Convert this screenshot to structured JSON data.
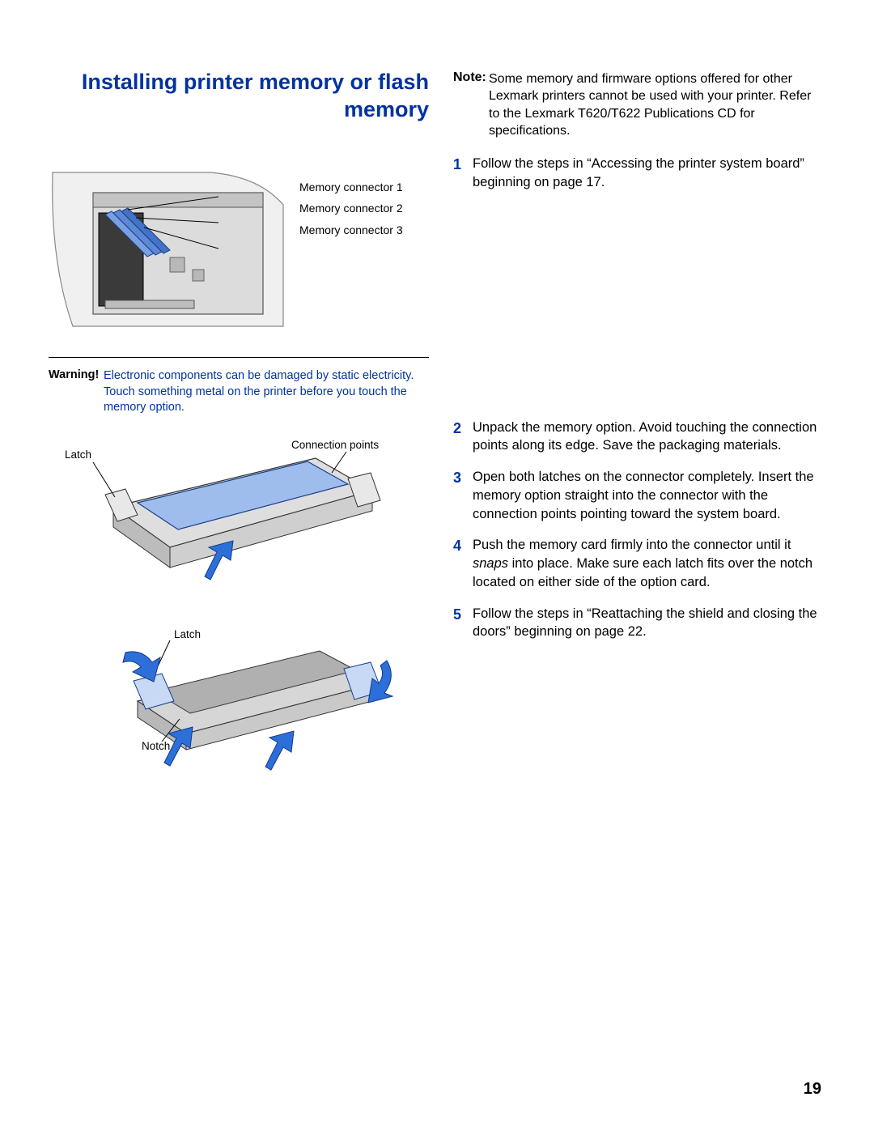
{
  "colors": {
    "accent": "#0033a0",
    "arrow_fill": "#2d6fd9",
    "card_fill": "#a9c3ea",
    "metal_light": "#e5e5e5",
    "metal_mid": "#cfcfcf",
    "metal_dark": "#9a9a9a",
    "outline": "#000000"
  },
  "title": "Installing printer memory or flash memory",
  "diagram1": {
    "labels": [
      "Memory connector 1",
      "Memory connector 2",
      "Memory connector 3"
    ]
  },
  "warning": {
    "label": "Warning!",
    "text": "Electronic components can be damaged by static electricity. Touch something metal on the printer before you touch the memory option."
  },
  "diagram2": {
    "latch_label": "Latch",
    "points_label": "Connection points"
  },
  "diagram3": {
    "latch_label": "Latch",
    "notch_label": "Notch"
  },
  "note": {
    "label": "Note:",
    "text": "Some memory and firmware options offered for other Lexmark printers cannot be used with your printer. Refer to the Lexmark T620/T622 Publications CD for specifications."
  },
  "steps": [
    "Follow the steps in “Accessing the printer system board” beginning on page 17.",
    "Unpack the memory option. Avoid touching the connection points along its edge. Save the packaging materials.",
    "Open both latches on the connector completely. Insert the memory option straight into the connector with the connection points pointing toward the system board.",
    "Push the memory card firmly into the connector until it <em>snaps</em> into place. Make sure each latch fits over the notch located on either side of the option card.",
    "Follow the steps in “Reattaching the shield and closing the doors” beginning on page 22."
  ],
  "step_gap_after_first": true,
  "page_number": "19"
}
